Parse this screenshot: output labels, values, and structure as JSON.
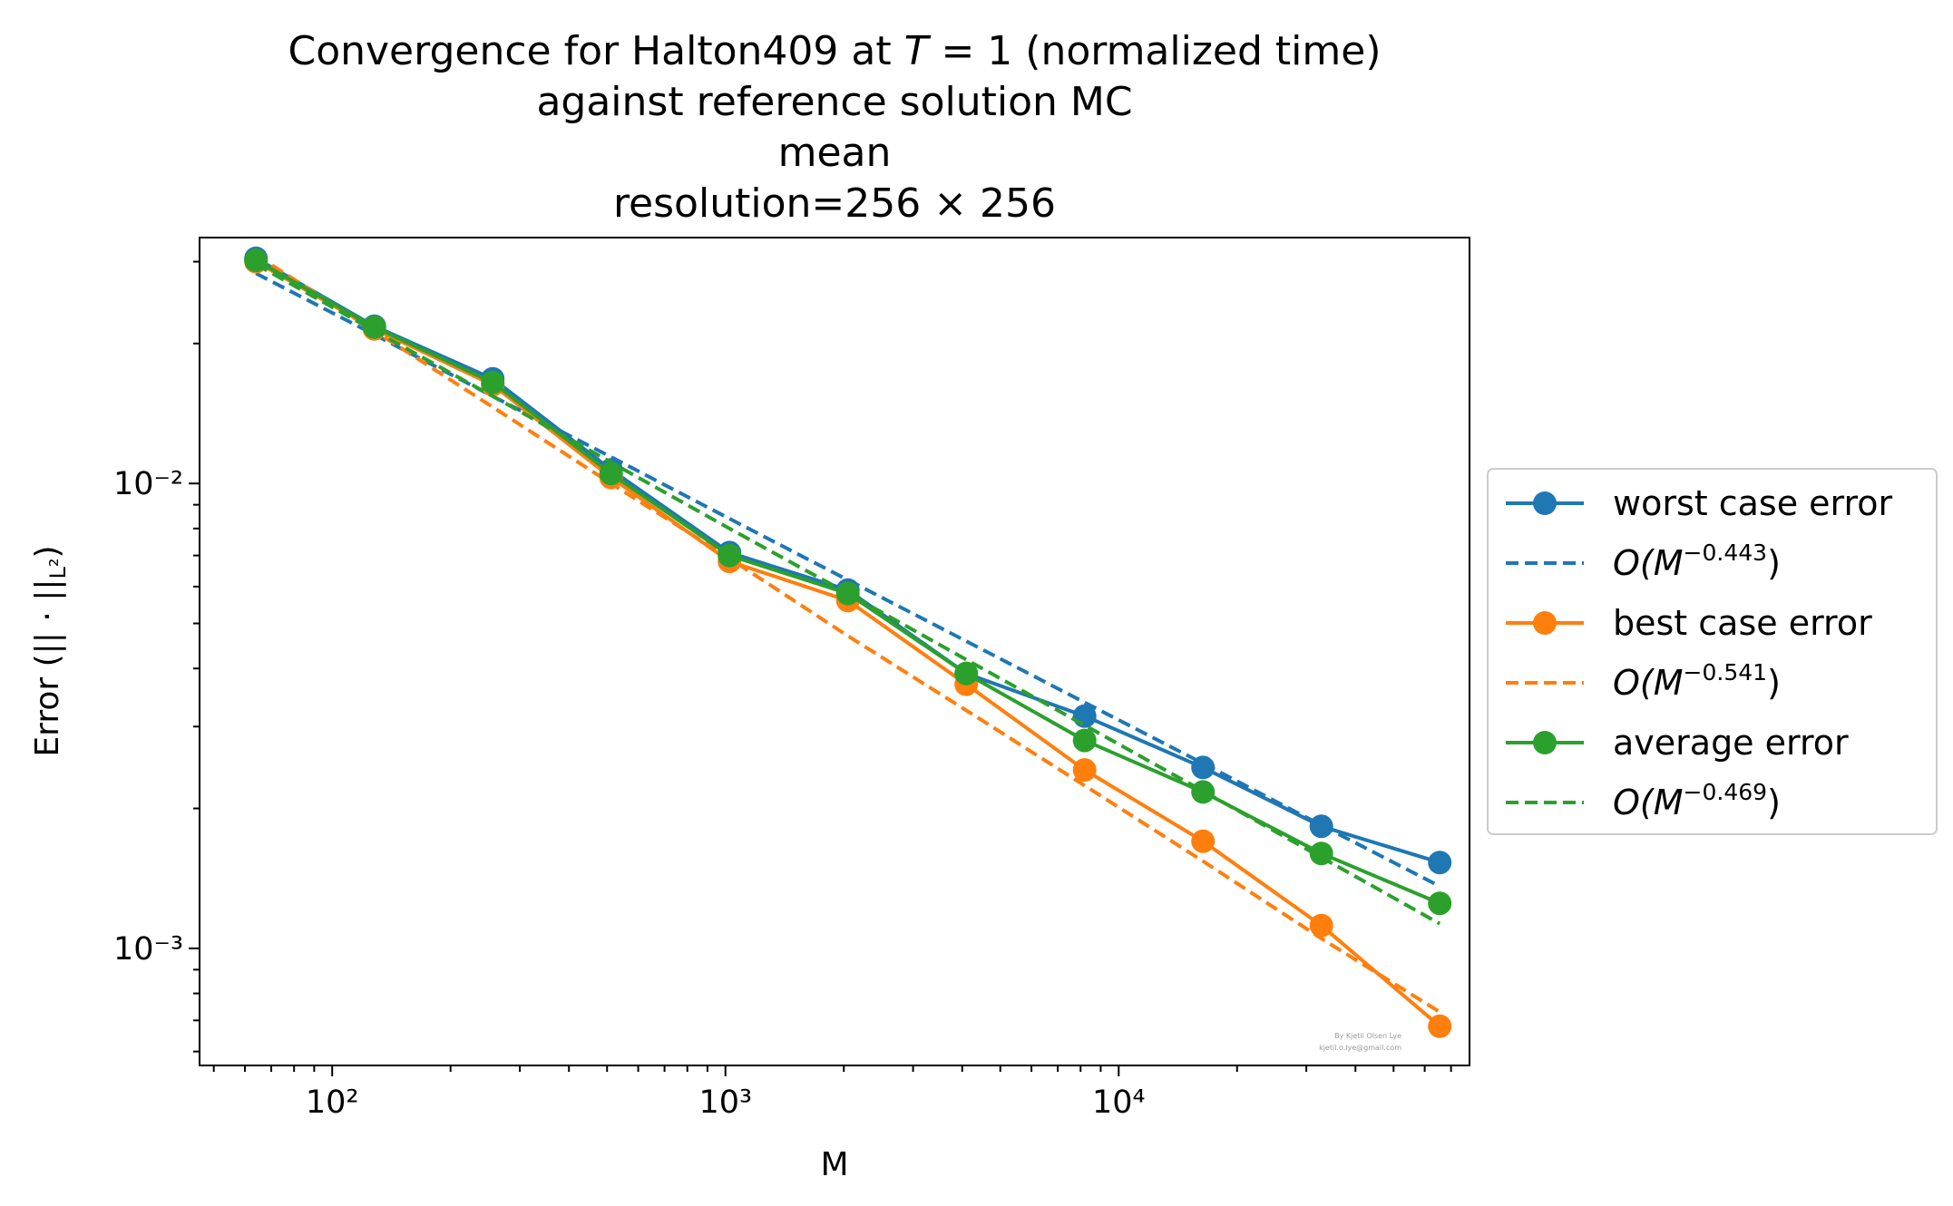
{
  "chart_data": {
    "type": "line",
    "title_lines": [
      "Convergence for Halton409 at T = 1 (normalized time)",
      "against reference solution MC",
      "mean",
      "resolution=256 × 256"
    ],
    "xlabel": "M",
    "ylabel": "Error (|| · ||L²)",
    "xscale": "log",
    "yscale": "log",
    "xlim": [
      46,
      78000
    ],
    "ylim": [
      0.00056,
      0.0338
    ],
    "x_ticks": [
      {
        "value": 100,
        "label": "10²"
      },
      {
        "value": 1000,
        "label": "10³"
      },
      {
        "value": 10000,
        "label": "10⁴"
      }
    ],
    "y_ticks": [
      {
        "value": 0.01,
        "label": "10⁻²"
      },
      {
        "value": 0.001,
        "label": "10⁻³"
      }
    ],
    "grid": false,
    "legend_position": "outside-right",
    "x": [
      64,
      128,
      256,
      512,
      1024,
      2048,
      4096,
      8192,
      16384,
      32768,
      65536
    ],
    "series": [
      {
        "name": "worst case error",
        "style": "solid-marker",
        "color": "#1f77b4",
        "values": [
          0.0305,
          0.0218,
          0.0168,
          0.0107,
          0.0071,
          0.0059,
          0.0039,
          0.00316,
          0.00245,
          0.00183,
          0.00153
        ]
      },
      {
        "name": "O(M^-0.443)",
        "style": "dashed",
        "color": "#1f77b4",
        "values": [
          0.0283,
          0.0209,
          0.0154,
          0.0114,
          0.0084,
          0.0062,
          0.00458,
          0.00338,
          0.0025,
          0.00184,
          0.00136
        ]
      },
      {
        "name": "best case error",
        "style": "solid-marker",
        "color": "#ff7f0e",
        "values": [
          0.03,
          0.0215,
          0.0163,
          0.0103,
          0.0068,
          0.0056,
          0.0037,
          0.00242,
          0.0017,
          0.00112,
          0.00068
        ]
      },
      {
        "name": "O(M^-0.541)",
        "style": "dashed",
        "color": "#ff7f0e",
        "values": [
          0.031,
          0.0213,
          0.0146,
          0.01,
          0.0069,
          0.0047,
          0.00325,
          0.00224,
          0.00154,
          0.00105,
          0.00073
        ]
      },
      {
        "name": "average error",
        "style": "solid-marker",
        "color": "#2ca02c",
        "values": [
          0.0302,
          0.0217,
          0.0165,
          0.0105,
          0.007,
          0.0058,
          0.0039,
          0.0028,
          0.00217,
          0.0016,
          0.00125
        ]
      },
      {
        "name": "O(M^-0.469)",
        "style": "dashed",
        "color": "#2ca02c",
        "values": [
          0.0296,
          0.0213,
          0.0154,
          0.0111,
          0.008,
          0.0058,
          0.00418,
          0.00302,
          0.00218,
          0.00157,
          0.00113
        ]
      }
    ],
    "legend_labels": [
      {
        "prefix": "O(M",
        "exp": "−0.443",
        "suffix": ")"
      },
      {
        "prefix": "O(M",
        "exp": "−0.541",
        "suffix": ")"
      },
      {
        "prefix": "O(M",
        "exp": "−0.469",
        "suffix": ")"
      }
    ],
    "watermark": [
      "By Kjetil Olsen Lye",
      "kjetil.o.lye@gmail.com"
    ]
  }
}
